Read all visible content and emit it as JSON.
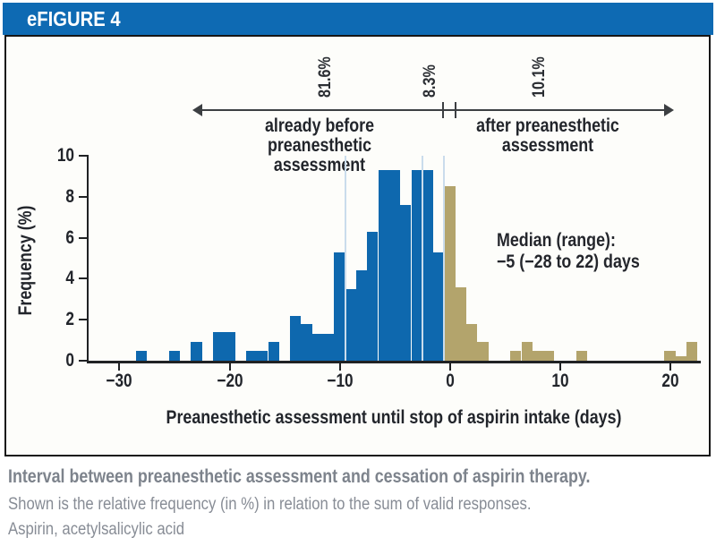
{
  "header": {
    "title": "eFIGURE 4"
  },
  "annotation": {
    "pct": [
      "81.6%",
      "8.3%",
      "10.1%"
    ],
    "before_l1": "already before preanesthetic",
    "before_l2": "assessment",
    "after_l1": "after preanesthetic",
    "after_l2": "assessment"
  },
  "median": {
    "line1": "Median (range):",
    "line2": "−5 (−28 to 22) days"
  },
  "caption": {
    "title": "Interval between preanesthetic assessment and cessation of aspirin therapy.",
    "line2": "Shown is the relative frequency (in %) in relation to the sum of valid responses.",
    "line3": "Aspirin, acetylsalicylic acid"
  },
  "chart_data": {
    "type": "bar",
    "title": "eFIGURE 4",
    "xlabel": "Preanesthetic assessment until stop of aspirin intake (days)",
    "ylabel": "Frequency (%)",
    "xlim": [
      -32.8,
      22.8
    ],
    "ylim": [
      0,
      10
    ],
    "grid": false,
    "legend": "none",
    "colors": {
      "before": "#0e68ae",
      "after": "#b3a46c"
    },
    "x_ticks": [
      {
        "v": -30,
        "label": "−30"
      },
      {
        "v": -20,
        "label": "−20"
      },
      {
        "v": -10,
        "label": "−10"
      },
      {
        "v": 0,
        "label": "0"
      },
      {
        "v": 10,
        "label": "10"
      },
      {
        "v": 20,
        "label": "20"
      }
    ],
    "y_ticks": [
      {
        "v": 0,
        "label": "0"
      },
      {
        "v": 2,
        "label": "2"
      },
      {
        "v": 4,
        "label": "4"
      },
      {
        "v": 6,
        "label": "6"
      },
      {
        "v": 8,
        "label": "8"
      },
      {
        "v": 10,
        "label": "10"
      }
    ],
    "separators": [
      -9.5,
      -2.5,
      -0.5
    ],
    "bars": [
      {
        "day": -28,
        "value": 0.5,
        "group": "before"
      },
      {
        "day": -25,
        "value": 0.5,
        "group": "before"
      },
      {
        "day": -23,
        "value": 0.9,
        "group": "before"
      },
      {
        "day": -21,
        "value": 1.4,
        "group": "before"
      },
      {
        "day": -20,
        "value": 1.4,
        "group": "before"
      },
      {
        "day": -18,
        "value": 0.5,
        "group": "before"
      },
      {
        "day": -17,
        "value": 0.5,
        "group": "before"
      },
      {
        "day": -16,
        "value": 0.9,
        "group": "before"
      },
      {
        "day": -14,
        "value": 2.2,
        "group": "before"
      },
      {
        "day": -13,
        "value": 1.8,
        "group": "before"
      },
      {
        "day": -12,
        "value": 1.3,
        "group": "before"
      },
      {
        "day": -11,
        "value": 1.3,
        "group": "before"
      },
      {
        "day": -10,
        "value": 5.3,
        "group": "before"
      },
      {
        "day": -9,
        "value": 3.5,
        "group": "before"
      },
      {
        "day": -8,
        "value": 4.4,
        "group": "before"
      },
      {
        "day": -7,
        "value": 6.3,
        "group": "before"
      },
      {
        "day": -6,
        "value": 9.3,
        "group": "before"
      },
      {
        "day": -5,
        "value": 9.3,
        "group": "before"
      },
      {
        "day": -4,
        "value": 7.6,
        "group": "before"
      },
      {
        "day": -3,
        "value": 9.3,
        "group": "before"
      },
      {
        "day": -2,
        "value": 9.3,
        "group": "before"
      },
      {
        "day": -1,
        "value": 5.3,
        "group": "before"
      },
      {
        "day": 0,
        "value": 8.5,
        "group": "after"
      },
      {
        "day": 1,
        "value": 3.6,
        "group": "after"
      },
      {
        "day": 2,
        "value": 1.8,
        "group": "after"
      },
      {
        "day": 3,
        "value": 0.9,
        "group": "after"
      },
      {
        "day": 6,
        "value": 0.5,
        "group": "after"
      },
      {
        "day": 7,
        "value": 0.9,
        "group": "after"
      },
      {
        "day": 8,
        "value": 0.5,
        "group": "after"
      },
      {
        "day": 9,
        "value": 0.5,
        "group": "after"
      },
      {
        "day": 12,
        "value": 0.5,
        "group": "after"
      },
      {
        "day": 20,
        "value": 0.5,
        "group": "after"
      },
      {
        "day": 21,
        "value": 0.2,
        "group": "after"
      },
      {
        "day": 22,
        "value": 0.9,
        "group": "after"
      }
    ]
  }
}
